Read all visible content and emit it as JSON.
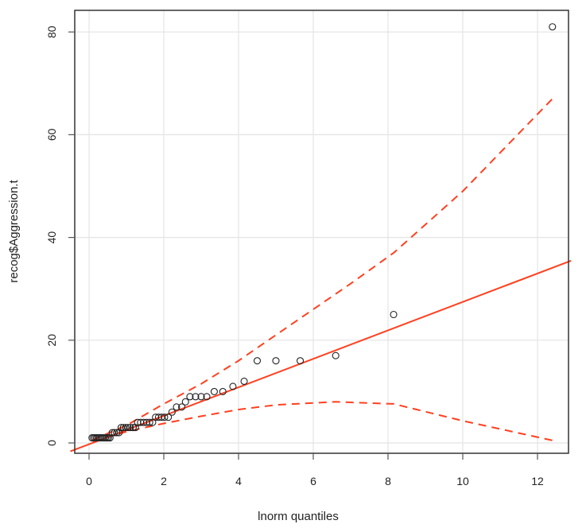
{
  "chart_data": {
    "type": "scatter",
    "title": "",
    "xlabel": "lnorm quantiles",
    "ylabel": "recog$Aggression.t",
    "xlim": [
      -0.45,
      12.85
    ],
    "ylim": [
      -2,
      84
    ],
    "xticks": [
      0,
      2,
      4,
      6,
      8,
      10,
      12
    ],
    "yticks": [
      0,
      20,
      40,
      60,
      80
    ],
    "grid": true,
    "colors": {
      "points": "#222222",
      "line": "#ff4020",
      "grid": "#e4e4e4",
      "axis": "#333333"
    },
    "points": [
      [
        0.08,
        1
      ],
      [
        0.12,
        1
      ],
      [
        0.16,
        1
      ],
      [
        0.2,
        1
      ],
      [
        0.24,
        1
      ],
      [
        0.28,
        1
      ],
      [
        0.32,
        1
      ],
      [
        0.36,
        1
      ],
      [
        0.4,
        1
      ],
      [
        0.44,
        1
      ],
      [
        0.48,
        1
      ],
      [
        0.52,
        1
      ],
      [
        0.56,
        1
      ],
      [
        0.62,
        2
      ],
      [
        0.68,
        2
      ],
      [
        0.74,
        2
      ],
      [
        0.8,
        2
      ],
      [
        0.86,
        3
      ],
      [
        0.92,
        3
      ],
      [
        0.98,
        3
      ],
      [
        1.04,
        3
      ],
      [
        1.1,
        3
      ],
      [
        1.18,
        3
      ],
      [
        1.24,
        3
      ],
      [
        1.3,
        4
      ],
      [
        1.38,
        4
      ],
      [
        1.46,
        4
      ],
      [
        1.54,
        4
      ],
      [
        1.62,
        4
      ],
      [
        1.7,
        4
      ],
      [
        1.78,
        5
      ],
      [
        1.86,
        5
      ],
      [
        1.94,
        5
      ],
      [
        2.02,
        5
      ],
      [
        2.12,
        5
      ],
      [
        2.22,
        6
      ],
      [
        2.34,
        7
      ],
      [
        2.48,
        7
      ],
      [
        2.58,
        8
      ],
      [
        2.7,
        9
      ],
      [
        2.85,
        9
      ],
      [
        3.0,
        9
      ],
      [
        3.15,
        9
      ],
      [
        3.35,
        10
      ],
      [
        3.58,
        10
      ],
      [
        3.85,
        11
      ],
      [
        4.15,
        12
      ],
      [
        4.5,
        16
      ],
      [
        5.0,
        16
      ],
      [
        5.65,
        16
      ],
      [
        6.6,
        17
      ],
      [
        8.15,
        25
      ],
      [
        12.4,
        81
      ]
    ],
    "fit_line": {
      "intercept": -0.25,
      "slope": 2.77
    },
    "upper_band": [
      [
        0.1,
        0.6
      ],
      [
        1,
        3.4
      ],
      [
        2,
        7.6
      ],
      [
        3,
        11.5
      ],
      [
        4,
        16
      ],
      [
        5,
        21
      ],
      [
        6,
        26
      ],
      [
        7,
        31
      ],
      [
        8.15,
        37
      ],
      [
        10,
        49
      ],
      [
        12.4,
        67
      ]
    ],
    "lower_band": [
      [
        0.1,
        0.3
      ],
      [
        1,
        2.2
      ],
      [
        2,
        3.8
      ],
      [
        3,
        5.2
      ],
      [
        4,
        6.5
      ],
      [
        5,
        7.4
      ],
      [
        6.6,
        8
      ],
      [
        8.15,
        7.6
      ],
      [
        10,
        4.3
      ],
      [
        12.4,
        0.5
      ]
    ]
  }
}
